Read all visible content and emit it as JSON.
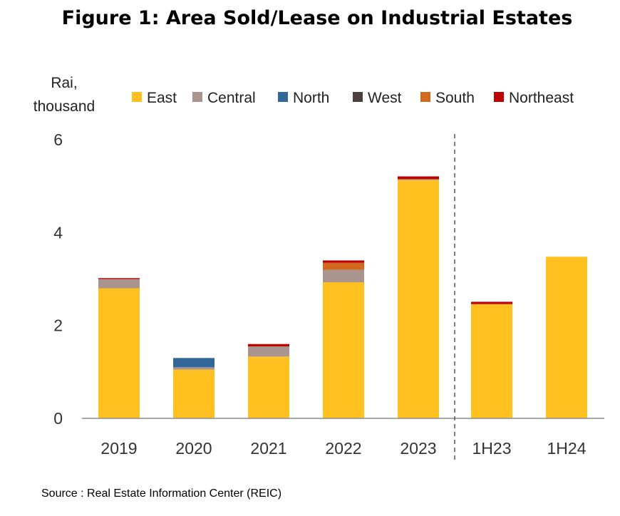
{
  "chart_data": {
    "type": "bar",
    "stacked": true,
    "title": "Figure 1: Area Sold/Lease on Industrial Estates",
    "ylabel_lines": [
      "Rai,",
      "thousand"
    ],
    "categories": [
      "2019",
      "2020",
      "2021",
      "2022",
      "2023",
      "1H23",
      "1H24"
    ],
    "divider_after": "2023",
    "ylim": [
      0,
      6
    ],
    "yticks": [
      "0",
      "2",
      "4",
      "6"
    ],
    "grid": false,
    "legend_position": "top",
    "series": [
      {
        "name": "East",
        "color": "#FFC020",
        "values": [
          2.8,
          1.05,
          1.33,
          2.93,
          5.13,
          2.46,
          3.48
        ]
      },
      {
        "name": "Central",
        "color": "#A9958E",
        "values": [
          0.2,
          0.05,
          0.22,
          0.27,
          0.02,
          0.0,
          0.0
        ]
      },
      {
        "name": "North",
        "color": "#336699",
        "values": [
          0.0,
          0.2,
          0.0,
          0.0,
          0.0,
          0.0,
          0.0
        ]
      },
      {
        "name": "West",
        "color": "#4B3F3F",
        "values": [
          0.0,
          0.0,
          0.0,
          0.0,
          0.0,
          0.0,
          0.0
        ]
      },
      {
        "name": "South",
        "color": "#D2691E",
        "values": [
          0.0,
          0.0,
          0.0,
          0.15,
          0.0,
          0.0,
          0.0
        ]
      },
      {
        "name": "Northeast",
        "color": "#C00000",
        "values": [
          0.02,
          0.0,
          0.05,
          0.05,
          0.06,
          0.05,
          0.0
        ]
      }
    ],
    "source": "Source : Real Estate Information Center (REIC)"
  }
}
